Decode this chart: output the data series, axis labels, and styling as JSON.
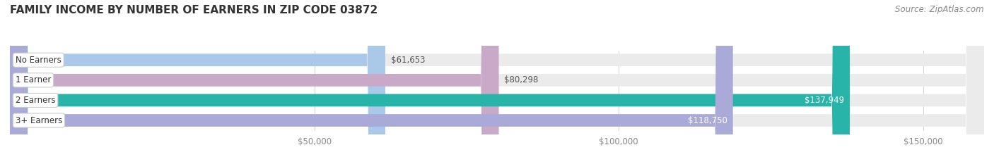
{
  "title": "FAMILY INCOME BY NUMBER OF EARNERS IN ZIP CODE 03872",
  "source": "Source: ZipAtlas.com",
  "categories": [
    "No Earners",
    "1 Earner",
    "2 Earners",
    "3+ Earners"
  ],
  "values": [
    61653,
    80298,
    137949,
    118750
  ],
  "bar_colors": [
    "#aac8e8",
    "#c8aac8",
    "#28b4a8",
    "#aaaad8"
  ],
  "bar_bg_color": "#ebebeb",
  "label_colors": [
    "#444444",
    "#444444",
    "#ffffff",
    "#ffffff"
  ],
  "xlim_min": 0,
  "xlim_max": 160000,
  "xticks": [
    50000,
    100000,
    150000
  ],
  "xtick_labels": [
    "$50,000",
    "$100,000",
    "$150,000"
  ],
  "bg_color": "#ffffff",
  "bar_height": 0.62,
  "title_fontsize": 11,
  "source_fontsize": 8.5,
  "label_fontsize": 8.5,
  "category_fontsize": 8.5,
  "tick_fontsize": 8.5
}
